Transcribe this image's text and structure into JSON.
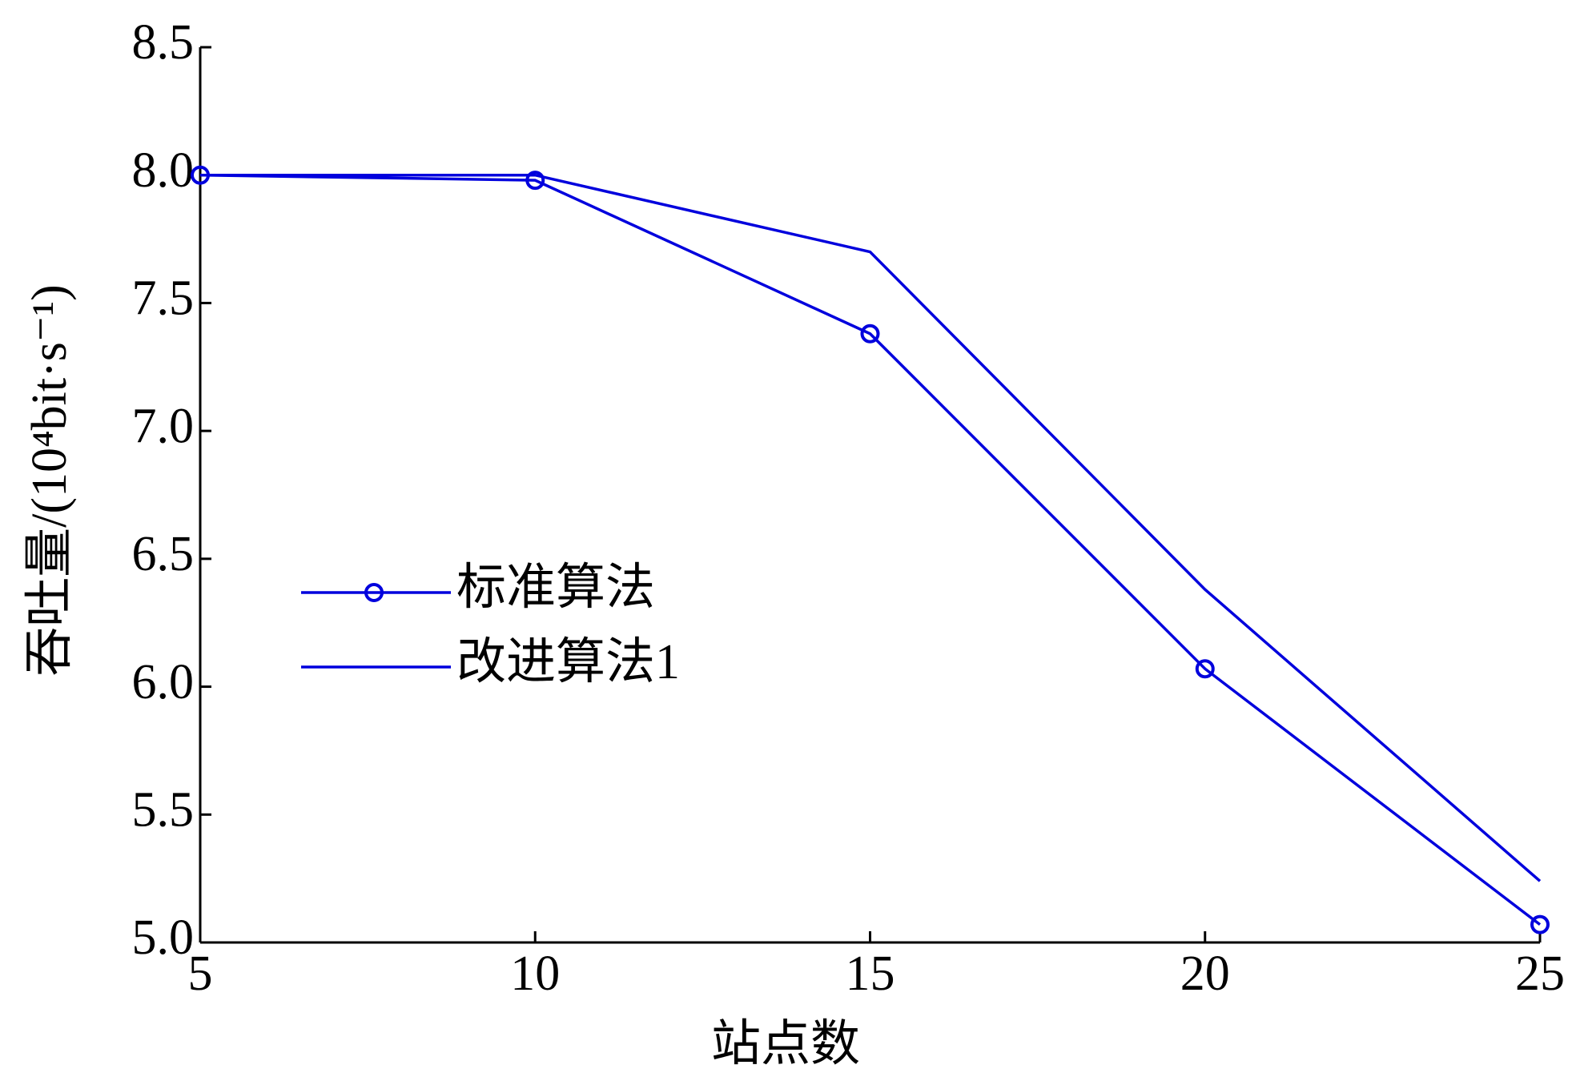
{
  "chart_data": {
    "type": "line",
    "x_label": "站点数",
    "y_label": "吞吐量/(10⁴bit·s⁻¹)",
    "x": [
      5,
      10,
      15,
      20,
      25
    ],
    "series": [
      {
        "name": "标准算法",
        "color": "#0000dd",
        "marker": "circle",
        "values": [
          8.0,
          7.98,
          7.38,
          6.07,
          5.07
        ]
      },
      {
        "name": "改进算法1",
        "color": "#0000dd",
        "marker": "none",
        "values": [
          8.0,
          8.0,
          7.7,
          6.38,
          5.24
        ]
      }
    ],
    "xlim": [
      5,
      25
    ],
    "xticks": [
      5,
      10,
      15,
      20,
      25
    ],
    "ylim": [
      5,
      8.5
    ],
    "yticks": [
      {
        "value": 5,
        "label": "5.0"
      },
      5.5,
      {
        "value": 6,
        "label": "6.0"
      },
      6.5,
      {
        "value": 7,
        "label": "7.0"
      },
      7.5,
      {
        "value": 8,
        "label": "8.0"
      },
      8.5
    ],
    "legend": "center-left"
  }
}
